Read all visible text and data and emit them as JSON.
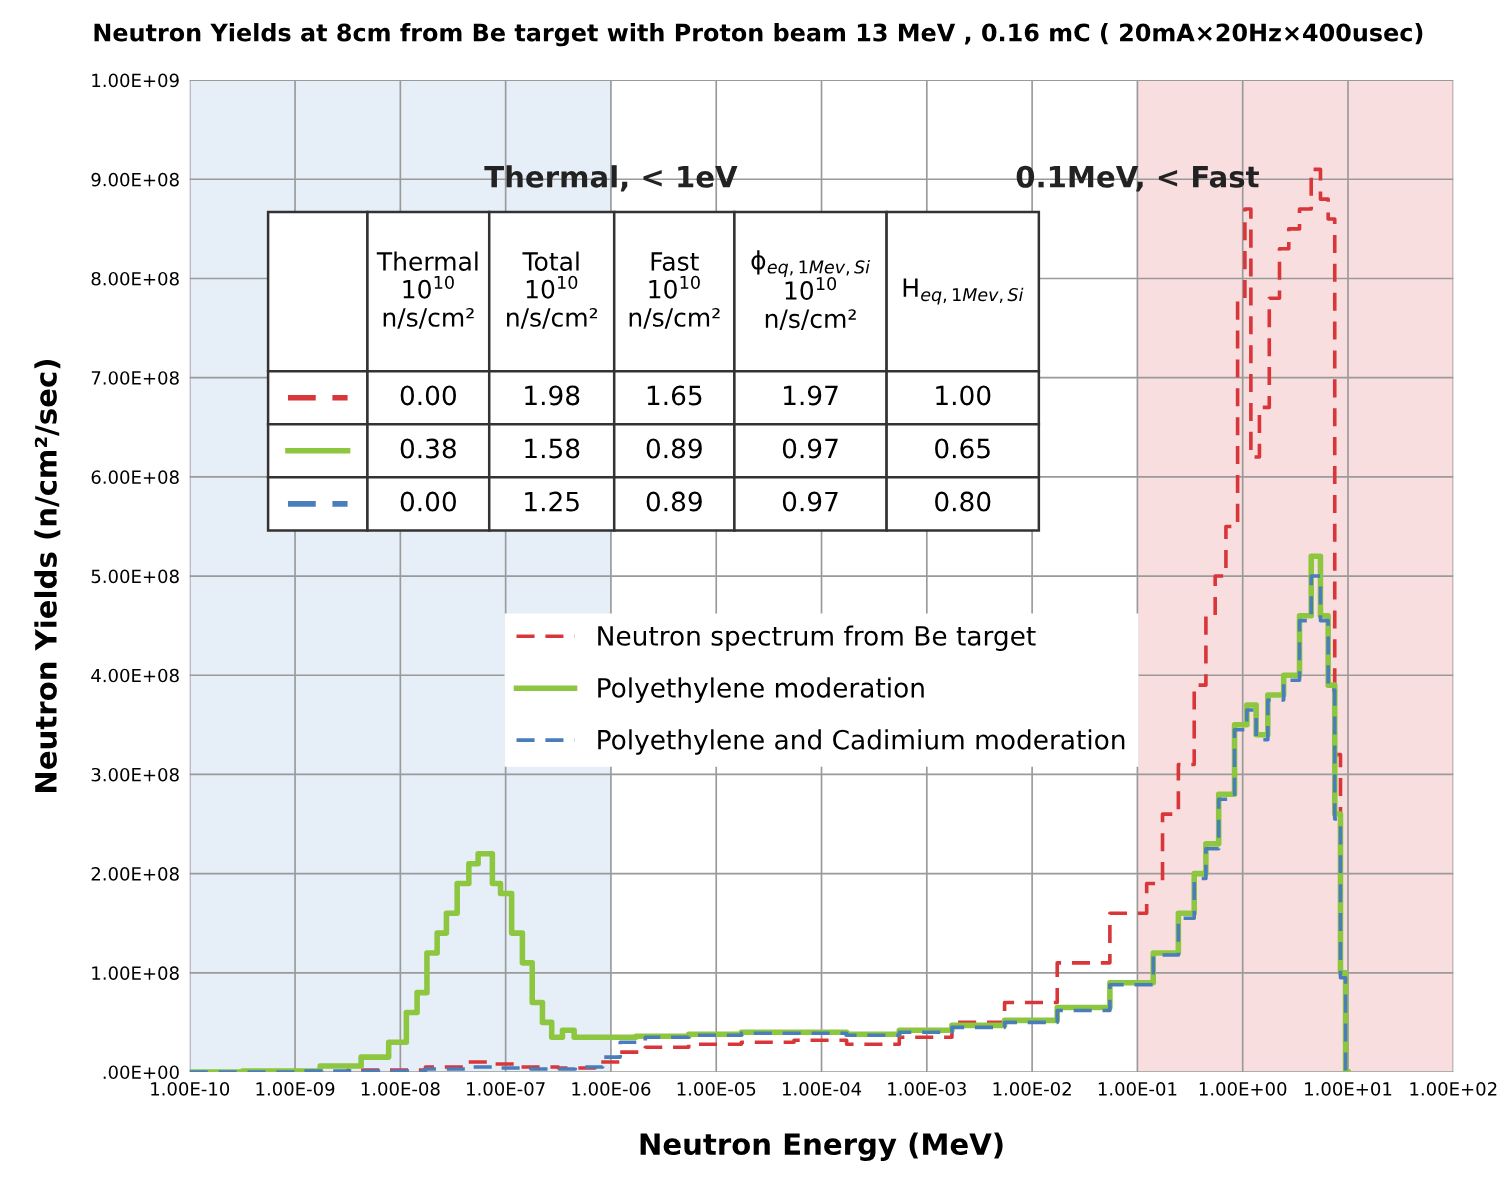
{
  "chart_data": {
    "type": "step",
    "title": "Neutron Yields at 8cm from Be target with Proton beam 13 MeV , 0.16 mC ( 20mA×20Hz×400usec)",
    "xlabel": "Neutron Energy (MeV)",
    "ylabel": "Neutron Yields (n/cm²/sec)",
    "log": "x",
    "grid": true,
    "legend": "center",
    "xlim": [
      1e-10,
      100
    ],
    "ylim": [
      0,
      1000000000
    ],
    "xticks": [
      {
        "value": 1e-10,
        "label": "1.00E-10"
      },
      {
        "value": 1e-09,
        "label": "1.00E-09"
      },
      {
        "value": 1e-08,
        "label": "1.00E-08"
      },
      {
        "value": 1e-07,
        "label": "1.00E-07"
      },
      {
        "value": 1e-06,
        "label": "1.00E-06"
      },
      {
        "value": 1e-05,
        "label": "1.00E-05"
      },
      {
        "value": 0.0001,
        "label": "1.00E-04"
      },
      {
        "value": 0.001,
        "label": "1.00E-03"
      },
      {
        "value": 0.01,
        "label": "1.00E-02"
      },
      {
        "value": 0.1,
        "label": "1.00E-01"
      },
      {
        "value": 1,
        "label": "1.00E+00"
      },
      {
        "value": 10,
        "label": "1.00E+01"
      },
      {
        "value": 100,
        "label": "1.00E+02"
      }
    ],
    "yticks": [
      {
        "value": 0,
        "label": ".00E+00"
      },
      {
        "value": 100000000,
        "label": "1.00E+08"
      },
      {
        "value": 200000000,
        "label": "2.00E+08"
      },
      {
        "value": 300000000,
        "label": "3.00E+08"
      },
      {
        "value": 400000000,
        "label": "4.00E+08"
      },
      {
        "value": 500000000,
        "label": "5.00E+08"
      },
      {
        "value": 600000000,
        "label": "6.00E+08"
      },
      {
        "value": 700000000,
        "label": "7.00E+08"
      },
      {
        "value": 800000000,
        "label": "8.00E+08"
      },
      {
        "value": 900000000,
        "label": "9.00E+08"
      },
      {
        "value": 1000000000,
        "label": "1.00E+09"
      }
    ],
    "bands": [
      {
        "axis": "x",
        "from": 1e-10,
        "to": 1e-06,
        "label": "Thermal, < 1eV",
        "color": "#dde9f5"
      },
      {
        "axis": "x",
        "from": 0.1,
        "to": 100,
        "label": "0.1MeV, < Fast",
        "color": "#f7d3d6"
      }
    ],
    "series": [
      {
        "name": "Neutron spectrum from Be target",
        "color": "#d9363a",
        "line_style": "dashed",
        "x": [
          1e-10,
          1e-09,
          1e-08,
          3e-08,
          6e-08,
          1e-07,
          2e-07,
          5e-07,
          1e-06,
          1.5e-06,
          3e-06,
          1e-05,
          3e-05,
          0.0001,
          0.0003,
          0.001,
          0.003,
          0.01,
          0.03,
          0.1,
          0.15,
          0.2,
          0.3,
          0.4,
          0.5,
          0.6,
          0.8,
          1.0,
          1.1,
          1.3,
          1.6,
          2,
          2.5,
          3,
          4,
          5,
          6,
          7,
          8,
          9,
          10
        ],
        "values": [
          0,
          0,
          2000000,
          5000000,
          10000000,
          8000000,
          5000000,
          4000000,
          10000000,
          20000000,
          25000000,
          28000000,
          30000000,
          32000000,
          28000000,
          35000000,
          50000000,
          70000000,
          110000000,
          160000000,
          190000000,
          260000000,
          310000000,
          390000000,
          460000000,
          500000000,
          550000000,
          780000000,
          870000000,
          620000000,
          670000000,
          780000000,
          830000000,
          850000000,
          870000000,
          910000000,
          880000000,
          860000000,
          320000000,
          100000000,
          0
        ]
      },
      {
        "name": "Polyethylene moderation",
        "color": "#8dc63f",
        "line_style": "solid",
        "x": [
          1e-10,
          1e-09,
          3e-09,
          6e-09,
          1e-08,
          1.3e-08,
          1.6e-08,
          2e-08,
          2.5e-08,
          3e-08,
          4e-08,
          5e-08,
          6e-08,
          7e-08,
          8e-08,
          1e-07,
          1.3e-07,
          1.6e-07,
          2e-07,
          2.5e-07,
          3e-07,
          4e-07,
          5e-07,
          1e-06,
          3e-06,
          1e-05,
          3e-05,
          0.0001,
          0.0003,
          0.001,
          0.003,
          0.01,
          0.03,
          0.1,
          0.2,
          0.3,
          0.4,
          0.5,
          0.7,
          1,
          1.2,
          1.5,
          2,
          3,
          4,
          5,
          6,
          7,
          8,
          9,
          10
        ],
        "values": [
          0,
          1000000,
          6000000,
          15000000,
          30000000,
          60000000,
          80000000,
          120000000,
          140000000,
          160000000,
          190000000,
          210000000,
          220000000,
          220000000,
          190000000,
          180000000,
          140000000,
          110000000,
          70000000,
          50000000,
          35000000,
          42000000,
          35000000,
          35000000,
          36000000,
          38000000,
          40000000,
          40000000,
          38000000,
          42000000,
          47000000,
          52000000,
          65000000,
          90000000,
          120000000,
          160000000,
          200000000,
          230000000,
          280000000,
          350000000,
          370000000,
          340000000,
          380000000,
          400000000,
          460000000,
          520000000,
          460000000,
          390000000,
          260000000,
          100000000,
          0
        ]
      },
      {
        "name": "Polyethylene and Cadimium moderation",
        "color": "#4a7ebb",
        "line_style": "dashed",
        "x": [
          1e-10,
          1e-08,
          3e-08,
          6e-08,
          1e-07,
          3e-07,
          7e-07,
          1e-06,
          1.5e-06,
          3e-06,
          1e-05,
          3e-05,
          0.0001,
          0.0003,
          0.001,
          0.003,
          0.01,
          0.03,
          0.1,
          0.2,
          0.3,
          0.4,
          0.5,
          0.7,
          1,
          1.2,
          1.5,
          2,
          3,
          4,
          5,
          6,
          7,
          8,
          9,
          10
        ],
        "values": [
          0,
          1000000,
          3000000,
          5000000,
          4000000,
          3000000,
          5000000,
          15000000,
          30000000,
          35000000,
          37000000,
          39000000,
          39000000,
          37000000,
          40000000,
          45000000,
          50000000,
          62000000,
          88000000,
          118000000,
          155000000,
          195000000,
          225000000,
          275000000,
          345000000,
          365000000,
          335000000,
          375000000,
          395000000,
          455000000,
          500000000,
          455000000,
          385000000,
          255000000,
          95000000,
          0
        ]
      }
    ],
    "annotations": [
      "Thermal\n10$^{10}$\nn/s/cm²",
      "Total\n10$^{10}$\nn/s/cm²",
      "Fast\n10$^{10}$\nn/s/cm²",
      "ϕ$_{eq,1Mev,Si}$\n10$^{10}$\nn/s/cm²",
      "H$_{eq,1Mev,Si}$",
      "0.00",
      "1.98",
      "1.65",
      "1.97",
      "1.00",
      "0.38",
      "1.58",
      "0.89",
      "0.97",
      "0.65",
      "0.00",
      "1.25",
      "0.89",
      "0.97",
      "0.80"
    ]
  }
}
